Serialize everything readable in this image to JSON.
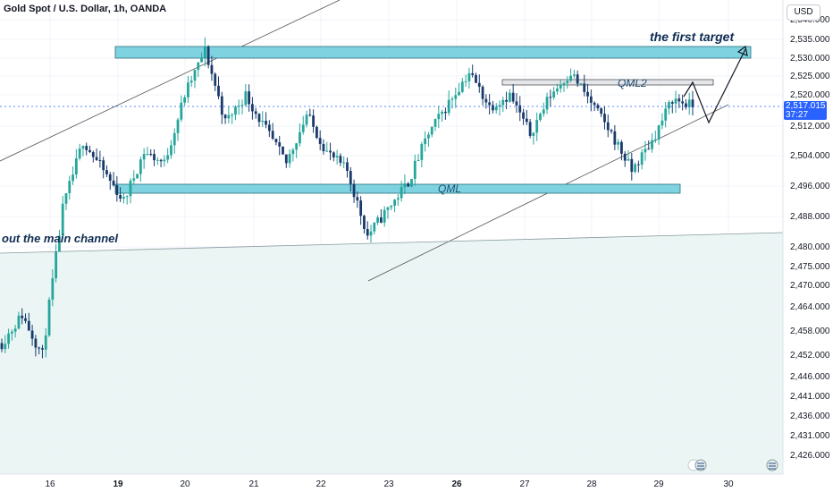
{
  "header": {
    "title": "Gold Spot / U.S. Dollar, 1h, OANDA",
    "currency": "USD"
  },
  "price_tag": {
    "price": "2,517.015",
    "countdown": "37:27"
  },
  "annotations": {
    "first_target": "the first target",
    "qml2": "QML2",
    "qml": "QML",
    "channel": "out the main channel"
  },
  "colors": {
    "up": "#26a69a",
    "down": "#1a3a6b",
    "zone_fill": "#7fd3e0",
    "zone_stroke": "#2a6d7a",
    "bg_lower": "#eaf5f4",
    "price_line": "#2962ff"
  },
  "chart_data": {
    "type": "candlestick",
    "instrument": "Gold Spot / U.S. Dollar",
    "timeframe": "1h",
    "y_ticks": [
      2540,
      2535,
      2530,
      2525,
      2520,
      2512,
      2504,
      2496,
      2488,
      2480,
      2475,
      2470,
      2464,
      2458,
      2452,
      2446,
      2441,
      2436,
      2431,
      2426
    ],
    "y_tick_labels": [
      "2,540.000",
      "2,535.000",
      "2,530.000",
      "2,525.000",
      "2,520.000",
      "2,512.000",
      "2,504.000",
      "2,496.000",
      "2,488.000",
      "2,480.000",
      "2,475.000",
      "2,470.000",
      "2,464.000",
      "2,458.000",
      "2,452.000",
      "2,446.000",
      "2,441.000",
      "2,436.000",
      "2,431.000",
      "2,426.000"
    ],
    "x_ticks": [
      "16",
      "19",
      "20",
      "21",
      "22",
      "23",
      "26",
      "27",
      "28",
      "29",
      "30"
    ],
    "last_price": 2517.015,
    "zones": [
      {
        "label": "",
        "from": 2530,
        "to": 2533
      },
      {
        "label": "QML",
        "from": 2494,
        "to": 2497
      },
      {
        "label": "QML2",
        "from": 2522.5,
        "to": 2524
      }
    ],
    "path_anchors": [
      {
        "x": "",
        "y": 2455
      },
      {
        "x": "",
        "y": 2462
      },
      {
        "x": "16-19",
        "y": 2452
      },
      {
        "x": "19",
        "y": 2490
      },
      {
        "x": "19",
        "y": 2508
      },
      {
        "x": "19-20",
        "y": 2500
      },
      {
        "x": "19-20",
        "y": 2492
      },
      {
        "x": "20",
        "y": 2505
      },
      {
        "x": "20-21",
        "y": 2502
      },
      {
        "x": "20-21",
        "y": 2520
      },
      {
        "x": "21",
        "y": 2532
      },
      {
        "x": "21",
        "y": 2513
      },
      {
        "x": "21",
        "y": 2520
      },
      {
        "x": "21-22",
        "y": 2511
      },
      {
        "x": "22",
        "y": 2502
      },
      {
        "x": "22",
        "y": 2515
      },
      {
        "x": "22-23",
        "y": 2505
      },
      {
        "x": "22-23",
        "y": 2500
      },
      {
        "x": "23",
        "y": 2483
      },
      {
        "x": "23",
        "y": 2490
      },
      {
        "x": "23-26",
        "y": 2497
      },
      {
        "x": "26",
        "y": 2510
      },
      {
        "x": "26",
        "y": 2518
      },
      {
        "x": "26-27",
        "y": 2526
      },
      {
        "x": "27",
        "y": 2517
      },
      {
        "x": "27",
        "y": 2520
      },
      {
        "x": "27-28",
        "y": 2510
      },
      {
        "x": "27-28",
        "y": 2520
      },
      {
        "x": "28",
        "y": 2526
      },
      {
        "x": "28",
        "y": 2518
      },
      {
        "x": "28-29",
        "y": 2510
      },
      {
        "x": "28-29",
        "y": 2500
      },
      {
        "x": "29",
        "y": 2508
      },
      {
        "x": "29",
        "y": 2519
      },
      {
        "x": "29",
        "y": 2517
      }
    ],
    "projection": [
      {
        "x": "29",
        "y": 2525
      },
      {
        "x": "29-30",
        "y": 2510
      },
      {
        "x": "30",
        "y": 2533
      }
    ]
  }
}
